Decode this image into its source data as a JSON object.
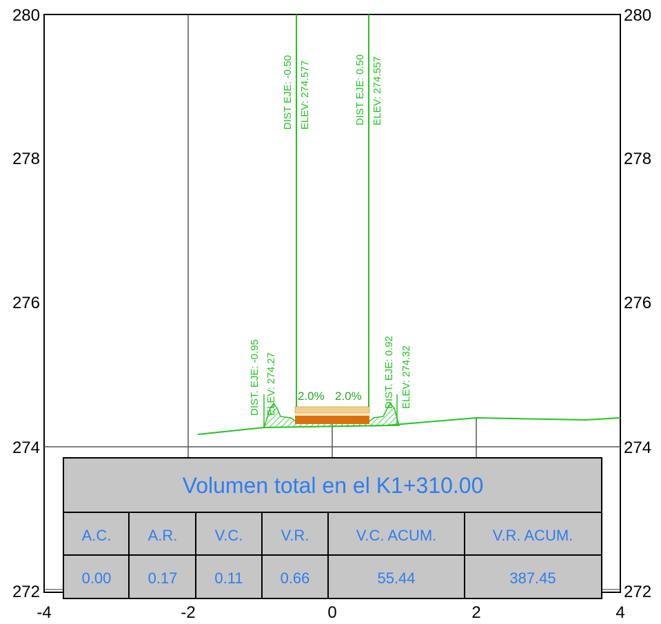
{
  "axes": {
    "x_ticks": [
      "-4",
      "-2",
      "0",
      "2",
      "4"
    ],
    "y_ticks": [
      "280",
      "278",
      "276",
      "274",
      "272"
    ]
  },
  "annotations": {
    "left_center": {
      "dist": "DIST EJE: -0.50",
      "elev": "ELEV: 274.577"
    },
    "right_center": {
      "dist": "DIST EJE: 0.50",
      "elev": "ELEV: 274.557"
    },
    "left_edge": {
      "dist": "DIST. EJE: -0.95",
      "elev": "ELEV: 274.27"
    },
    "right_edge": {
      "dist": "DIST. EJE: 0.92",
      "elev": "ELEV: 274.32"
    },
    "slope_left": "2.0%",
    "slope_right": "2.0%"
  },
  "volume_table": {
    "title": "Volumen total en el K1+310.00",
    "headers": [
      "A.C.",
      "A.R.",
      "V.C.",
      "V.R.",
      "V.C. ACUM.",
      "V.R. ACUM."
    ],
    "values": [
      "0.00",
      "0.17",
      "0.11",
      "0.66",
      "55.44",
      "387.45"
    ]
  },
  "colors": {
    "section_line": "#22c322",
    "pavement_top": "#f2cf8c",
    "pavement_base": "#d9700f",
    "table_fill": "#c6c6c6",
    "table_text": "#2f7df0"
  }
}
